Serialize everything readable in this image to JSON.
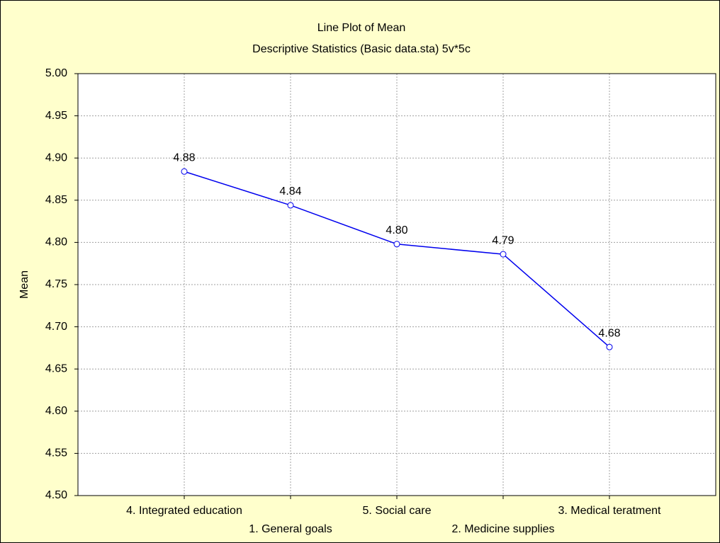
{
  "chart_data": {
    "type": "line",
    "title": "Line Plot of Mean",
    "subtitle": "Descriptive Statistics (Basic data.sta) 5v*5c",
    "y_label": "Mean",
    "categories": [
      "4. Integrated education",
      "1. General goals",
      "5. Social care",
      "2. Medicine supplies",
      "3. Medical teratment"
    ],
    "series": [
      {
        "name": "Mean",
        "color": "#0000ee",
        "values": [
          4.884,
          4.844,
          4.798,
          4.786,
          4.676
        ],
        "value_labels": [
          "4.88",
          "4.84",
          "4.80",
          "4.79",
          "4.68"
        ]
      }
    ],
    "ylim": [
      4.5,
      5.0
    ],
    "yticks": [
      {
        "value": 4.5,
        "label": "4.50"
      },
      {
        "value": 4.55,
        "label": "4.55"
      },
      {
        "value": 4.6,
        "label": "4.60"
      },
      {
        "value": 4.65,
        "label": "4.65"
      },
      {
        "value": 4.7,
        "label": "4.70"
      },
      {
        "value": 4.75,
        "label": "4.75"
      },
      {
        "value": 4.8,
        "label": "4.80"
      },
      {
        "value": 4.85,
        "label": "4.85"
      },
      {
        "value": 4.9,
        "label": "4.90"
      },
      {
        "value": 4.95,
        "label": "4.95"
      },
      {
        "value": 5.0,
        "label": "5.00"
      }
    ],
    "grid": true
  }
}
